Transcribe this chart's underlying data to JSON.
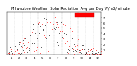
{
  "title": "Milwaukee Weather  Solar Radiation",
  "subtitle": "Avg per Day W/m2/minute",
  "bg_color": "#ffffff",
  "plot_bg": "#ffffff",
  "grid_color": "#aaaaaa",
  "line_color_red": "#ff0000",
  "line_color_black": "#000000",
  "x_min": 1,
  "x_max": 365,
  "y_min": 0,
  "y_max": 800,
  "y_tick_vals": [
    100,
    200,
    300,
    400,
    500,
    600,
    700
  ],
  "y_tick_labels": [
    "1",
    "2",
    "3",
    "4",
    "5",
    "6",
    "7"
  ],
  "title_fontsize": 3.8,
  "tick_fontsize": 2.8,
  "markersize": 1.0
}
